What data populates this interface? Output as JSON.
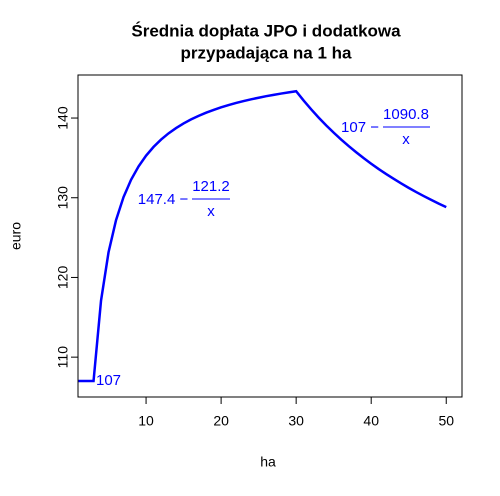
{
  "chart_data": {
    "type": "line",
    "title": [
      "Średnia dopłata JPO i dodatkowa",
      "przypadająca na 1 ha"
    ],
    "x_label": "ha",
    "y_label": "euro",
    "x": [
      1,
      2,
      3,
      4,
      5,
      6,
      7,
      8,
      9,
      10,
      11,
      12,
      13,
      14,
      15,
      16,
      17,
      18,
      19,
      20,
      21,
      22,
      23,
      24,
      25,
      26,
      27,
      28,
      29,
      30,
      31,
      32,
      33,
      34,
      35,
      36,
      37,
      38,
      39,
      40,
      41,
      42,
      43,
      44,
      45,
      46,
      47,
      48,
      49,
      50
    ],
    "series": [
      {
        "color": "#0000ff",
        "values": [
          107,
          107,
          107,
          117.1,
          123.16,
          127.2,
          130.09,
          132.25,
          133.93,
          135.28,
          136.38,
          137.3,
          138.08,
          138.74,
          139.32,
          139.83,
          140.27,
          140.67,
          141.02,
          141.34,
          141.63,
          141.89,
          142.13,
          142.35,
          142.55,
          142.74,
          142.91,
          143.07,
          143.22,
          143.36,
          142.19,
          141.09,
          140.05,
          139.08,
          138.17,
          137.3,
          136.48,
          135.71,
          134.97,
          134.27,
          133.6,
          132.97,
          132.37,
          131.79,
          131.24,
          130.71,
          130.21,
          129.73,
          129.26,
          128.82
        ]
      }
    ],
    "xlim": [
      0.93,
      52.1
    ],
    "ylim": [
      105,
      145.4
    ],
    "xticks": [
      10,
      20,
      30,
      40,
      50
    ],
    "yticks": [
      110,
      120,
      130,
      140
    ],
    "annotations": [
      {
        "text": "107"
      },
      {
        "prefix": "147.4 −",
        "numerator": "121.2",
        "denominator": "x"
      },
      {
        "prefix": "107 −",
        "numerator": "1090.8",
        "denominator": "x"
      }
    ]
  }
}
